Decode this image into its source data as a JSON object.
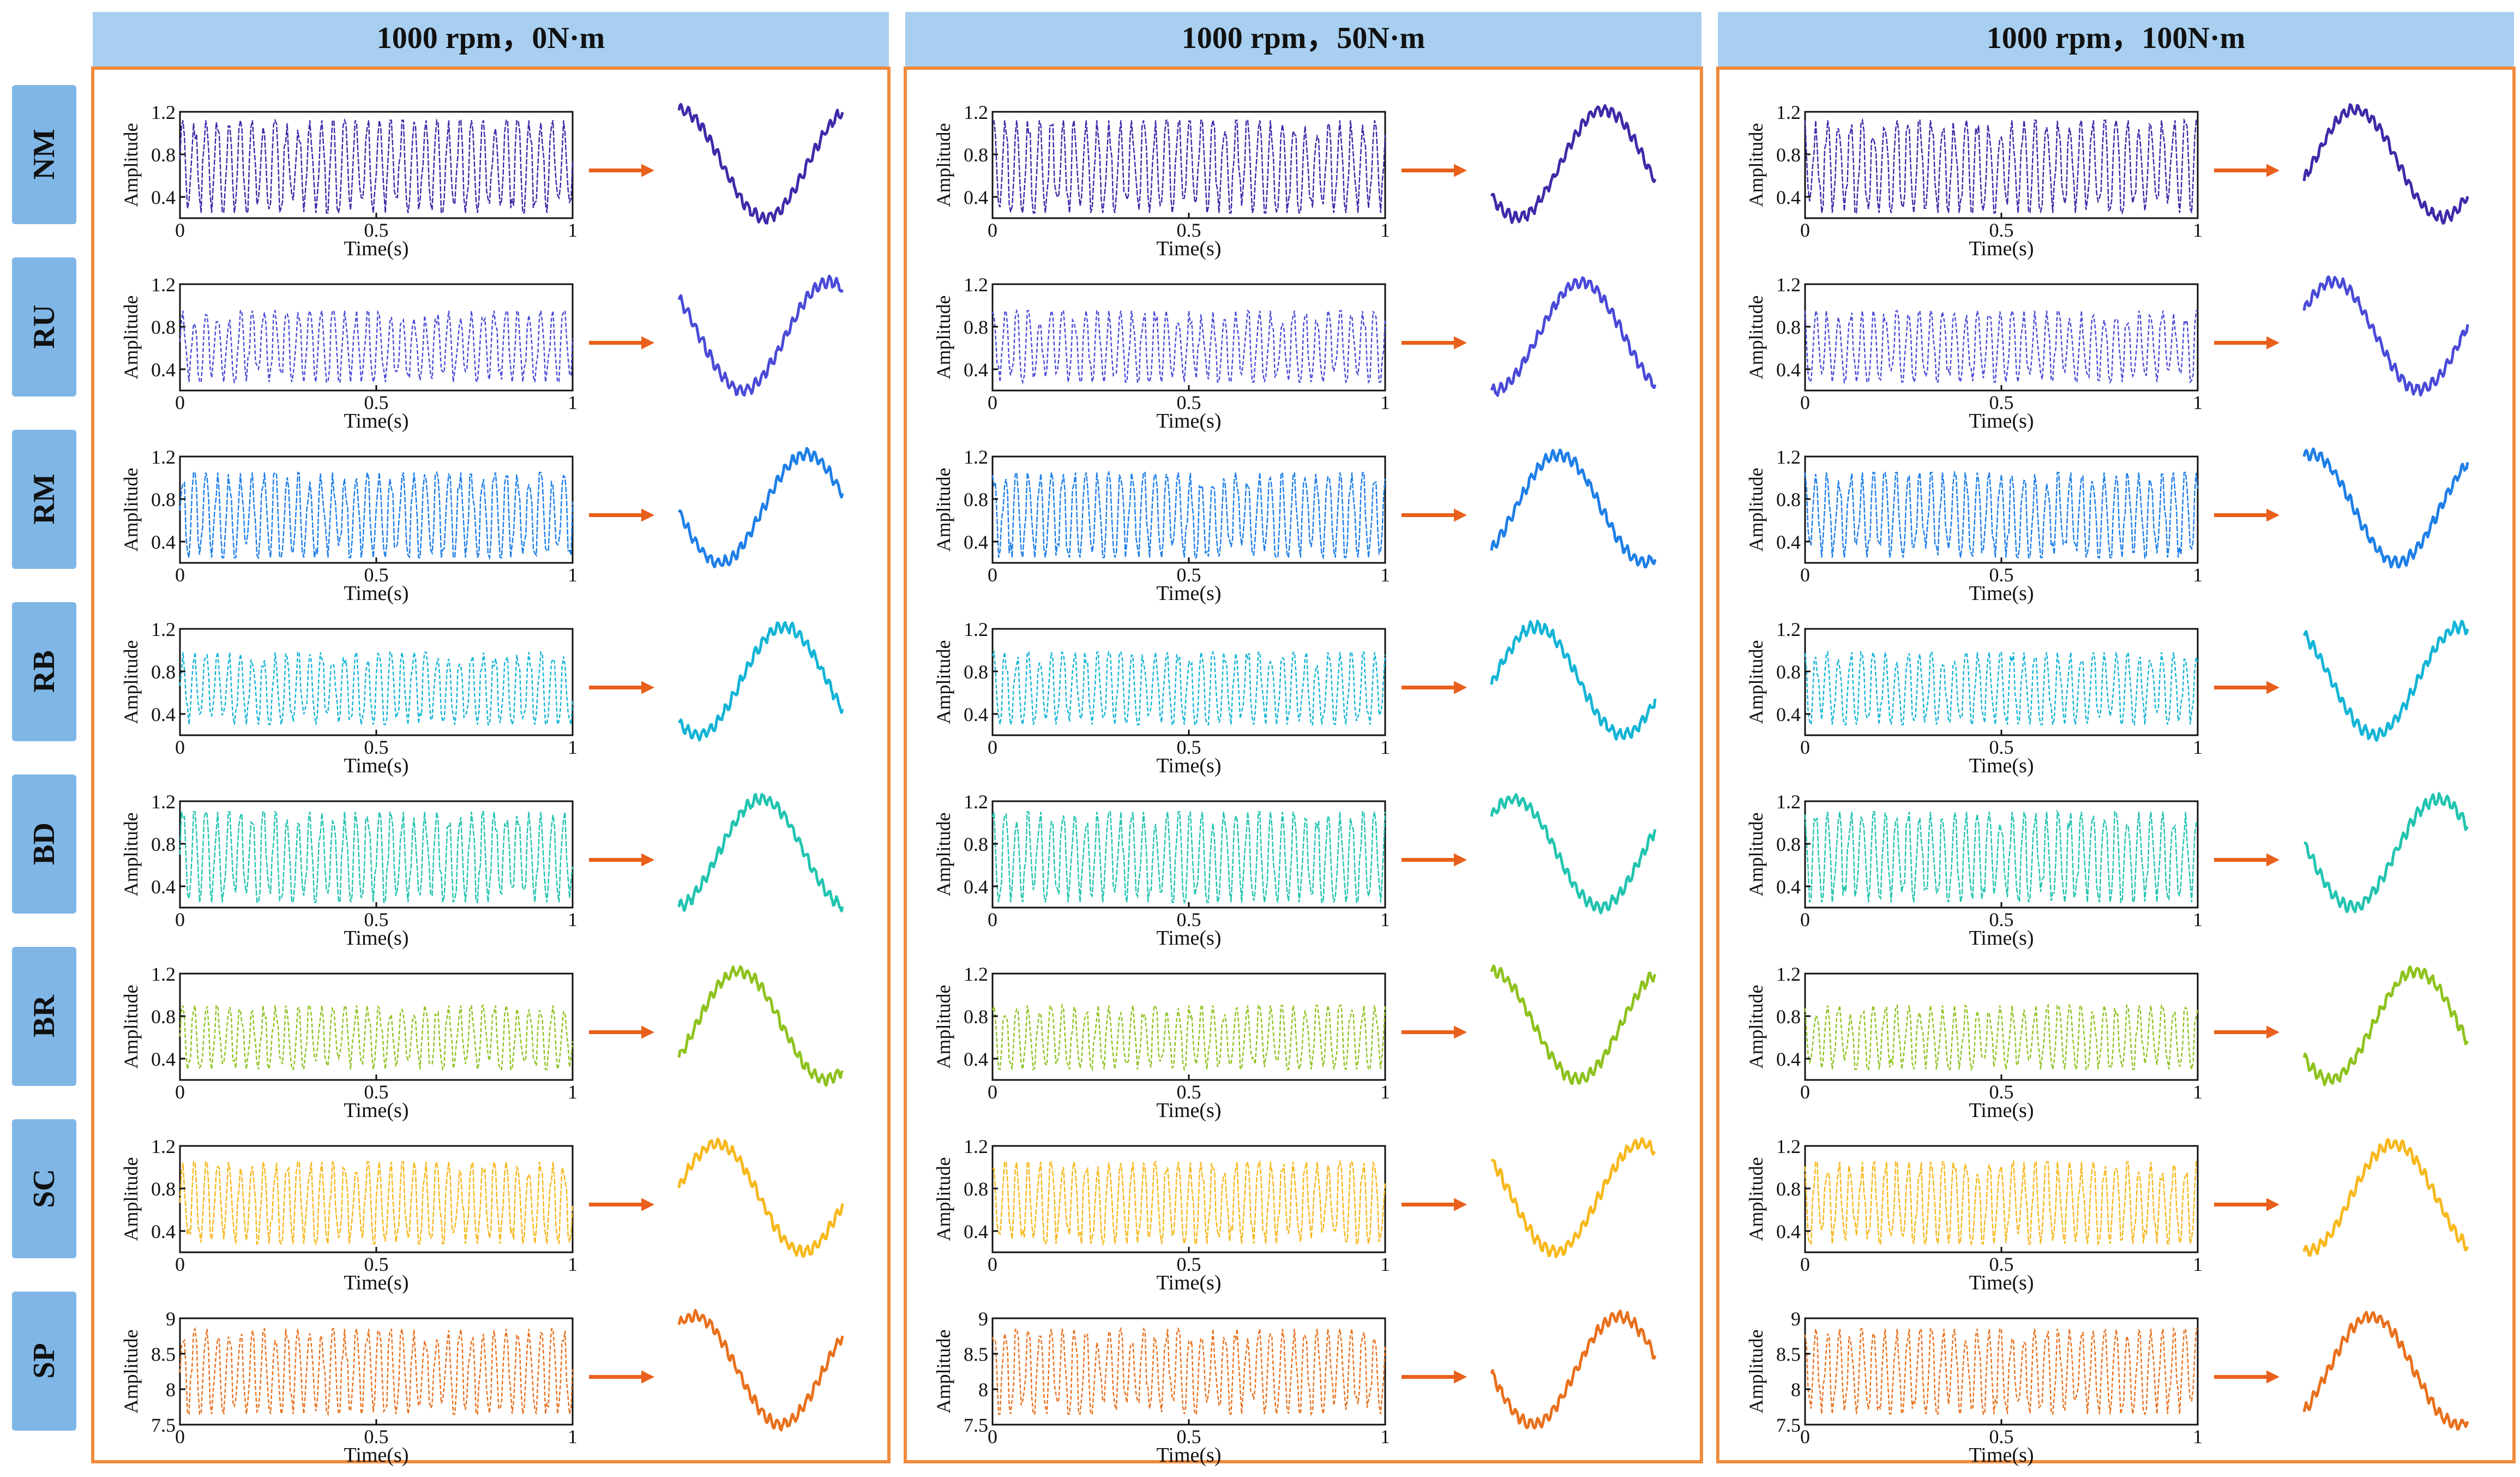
{
  "columns": [
    "1000 rpm，0N·m",
    "1000 rpm，50N·m",
    "1000 rpm，100N·m"
  ],
  "rows": [
    {
      "code": "NM",
      "color": "#3d2aa8",
      "yticks": [
        "0.4",
        "0.8",
        "1.2"
      ],
      "ylim": [
        0.2,
        1.2
      ],
      "band": [
        0.25,
        1.12
      ]
    },
    {
      "code": "RU",
      "color": "#4a4ad8",
      "yticks": [
        "0.4",
        "0.8",
        "1.2"
      ],
      "ylim": [
        0.2,
        1.2
      ],
      "band": [
        0.28,
        0.95
      ]
    },
    {
      "code": "RM",
      "color": "#1e7fe8",
      "yticks": [
        "0.4",
        "0.8",
        "1.2"
      ],
      "ylim": [
        0.2,
        1.2
      ],
      "band": [
        0.25,
        1.05
      ]
    },
    {
      "code": "RB",
      "color": "#12b4d6",
      "yticks": [
        "0.4",
        "0.8",
        "1.2"
      ],
      "ylim": [
        0.2,
        1.2
      ],
      "band": [
        0.3,
        0.98
      ]
    },
    {
      "code": "BD",
      "color": "#22c4b0",
      "yticks": [
        "0.4",
        "0.8",
        "1.2"
      ],
      "ylim": [
        0.2,
        1.2
      ],
      "band": [
        0.25,
        1.1
      ]
    },
    {
      "code": "BR",
      "color": "#8ec21e",
      "yticks": [
        "0.4",
        "0.8",
        "1.2"
      ],
      "ylim": [
        0.2,
        1.2
      ],
      "band": [
        0.3,
        0.9
      ]
    },
    {
      "code": "SC",
      "color": "#f7b81c",
      "yticks": [
        "0.4",
        "0.8",
        "1.2"
      ],
      "ylim": [
        0.2,
        1.2
      ],
      "band": [
        0.28,
        1.05
      ]
    },
    {
      "code": "SP",
      "color": "#e8701c",
      "yticks": [
        "7.5",
        "8",
        "8.5",
        "9"
      ],
      "ylim": [
        7.5,
        9.0
      ],
      "band": [
        7.65,
        8.85
      ]
    }
  ],
  "axis": {
    "ylabel": "Amplitude",
    "xlabel": "Time(s)",
    "xticks": [
      "0",
      "0.5",
      "1"
    ],
    "xlim": [
      0,
      1
    ]
  },
  "style": {
    "header_bg": "#a8cff0",
    "panel_border": "#f08a3c",
    "arrow_color": "#e8601c",
    "label_bg": "#7fb6e6"
  },
  "chart_data": {
    "type": "line",
    "layout": "grid of 8 fault classes × 3 load conditions; each cell is a 0–1 s vibration signal followed by an arrow and a single extracted waveform period",
    "x": {
      "label": "Time(s)",
      "range": [
        0,
        1
      ],
      "ticks": [
        0,
        0.5,
        1
      ]
    },
    "y": {
      "label": "Amplitude"
    },
    "columns": [
      "1000 rpm，0N·m",
      "1000 rpm，50N·m",
      "1000 rpm，100N·m"
    ],
    "series": [
      {
        "name": "NM",
        "ylim": [
          0.2,
          1.2
        ],
        "yticks": [
          0.4,
          0.8,
          1.2
        ],
        "amplitude_range": [
          0.25,
          1.12
        ]
      },
      {
        "name": "RU",
        "ylim": [
          0.2,
          1.2
        ],
        "yticks": [
          0.4,
          0.8,
          1.2
        ],
        "amplitude_range": [
          0.28,
          0.95
        ]
      },
      {
        "name": "RM",
        "ylim": [
          0.2,
          1.2
        ],
        "yticks": [
          0.4,
          0.8,
          1.2
        ],
        "amplitude_range": [
          0.25,
          1.05
        ]
      },
      {
        "name": "RB",
        "ylim": [
          0.2,
          1.2
        ],
        "yticks": [
          0.4,
          0.8,
          1.2
        ],
        "amplitude_range": [
          0.3,
          0.98
        ]
      },
      {
        "name": "BD",
        "ylim": [
          0.2,
          1.2
        ],
        "yticks": [
          0.4,
          0.8,
          1.2
        ],
        "amplitude_range": [
          0.25,
          1.1
        ]
      },
      {
        "name": "BR",
        "ylim": [
          0.2,
          1.2
        ],
        "yticks": [
          0.4,
          0.8,
          1.2
        ],
        "amplitude_range": [
          0.3,
          0.9
        ]
      },
      {
        "name": "SC",
        "ylim": [
          0.2,
          1.2
        ],
        "yticks": [
          0.4,
          0.8,
          1.2
        ],
        "amplitude_range": [
          0.28,
          1.05
        ]
      },
      {
        "name": "SP",
        "ylim": [
          7.5,
          9.0
        ],
        "yticks": [
          7.5,
          8,
          8.5,
          9
        ],
        "amplitude_range": [
          7.65,
          8.85
        ]
      }
    ]
  }
}
